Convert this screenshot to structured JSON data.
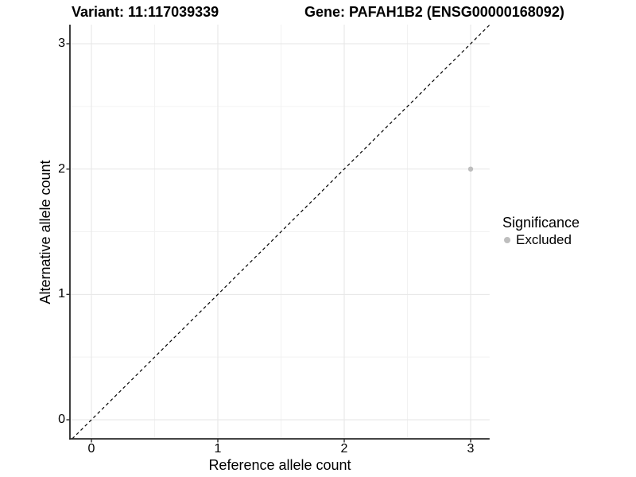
{
  "chart_data": {
    "type": "scatter",
    "title_left": "Variant: 11:117039339",
    "title_right": "Gene: PAFAH1B2 (ENSG00000168092)",
    "xlabel": "Reference allele count",
    "ylabel": "Alternative allele count",
    "x_ticks": [
      0,
      1,
      2,
      3
    ],
    "y_ticks": [
      0,
      1,
      2,
      3
    ],
    "x_minor_ticks": [
      0.5,
      1.5,
      2.5
    ],
    "y_minor_ticks": [
      0.5,
      1.5,
      2.5
    ],
    "xlim": [
      -0.17,
      3.15
    ],
    "ylim": [
      -0.152,
      3.152
    ],
    "grid": "major+minor",
    "reference_line": {
      "kind": "identity",
      "dash": "dashed",
      "color": "#000000"
    },
    "series": [
      {
        "name": "Excluded",
        "color": "#bebebe",
        "points": [
          {
            "x": 3,
            "y": 2
          }
        ]
      }
    ],
    "legend": {
      "title": "Significance",
      "position": "right",
      "items": [
        {
          "label": "Excluded",
          "color": "#bebebe",
          "marker": "circle"
        }
      ]
    },
    "colors": {
      "background": "#ffffff",
      "grid_major": "#e6e6e6",
      "grid_minor": "#f2f2f2",
      "axis": "#2a2a2a",
      "text": "#000000"
    }
  }
}
